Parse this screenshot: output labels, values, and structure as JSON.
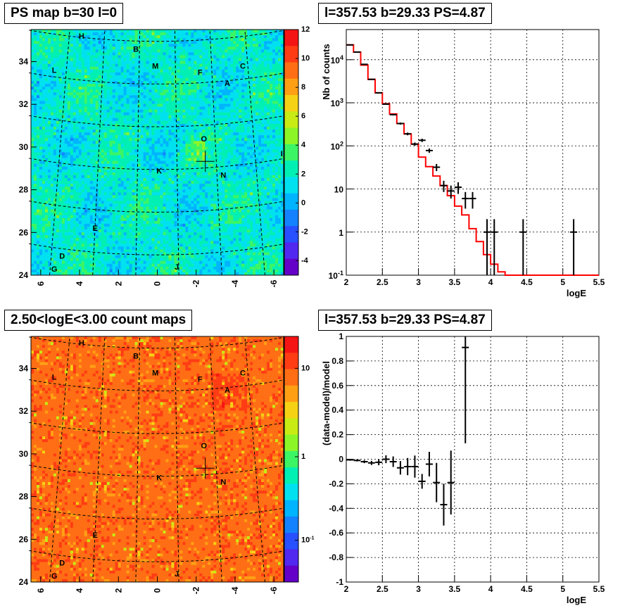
{
  "titles": {
    "map_top": "PS map b=30 l=0",
    "spec_top": "l=357.53 b=29.33 PS=4.87",
    "map_bottom": "2.50<logE<3.00 count maps",
    "resid_bottom": "l=357.53 b=29.33 PS=4.87"
  },
  "colors": {
    "model_line": "#ff0000",
    "data_points": "#000000",
    "grid": "#000000"
  },
  "chart_data": [
    {
      "type": "heatmap",
      "title": "PS map b=30 l=0",
      "x_ticks": [
        "6",
        "4",
        "2",
        "0",
        "-2",
        "-4",
        "-6"
      ],
      "y_ticks": [
        "24",
        "26",
        "28",
        "30",
        "32",
        "34"
      ],
      "xlim": [
        6.5,
        -6.5
      ],
      "ylim": [
        24,
        35.5
      ],
      "colorbar": {
        "min": -5,
        "max": 12,
        "ticks": [
          "-4",
          "-2",
          "0",
          "2",
          "4",
          "6",
          "8",
          "10",
          "12"
        ]
      },
      "source_labels": [
        {
          "text": "H",
          "x": 3.9,
          "y": 35.2
        },
        {
          "text": "B",
          "x": 1.1,
          "y": 34.6
        },
        {
          "text": "M",
          "x": 0.1,
          "y": 33.8
        },
        {
          "text": "F",
          "x": -2.2,
          "y": 33.5
        },
        {
          "text": "C",
          "x": -4.4,
          "y": 33.8
        },
        {
          "text": "L",
          "x": 5.3,
          "y": 33.6
        },
        {
          "text": "A",
          "x": -3.6,
          "y": 33.0
        },
        {
          "text": "O",
          "x": -2.4,
          "y": 30.4
        },
        {
          "text": "I",
          "x": -6.4,
          "y": 29.7
        },
        {
          "text": "K",
          "x": -0.1,
          "y": 28.9
        },
        {
          "text": "N",
          "x": -3.4,
          "y": 28.7
        },
        {
          "text": "E",
          "x": 3.2,
          "y": 26.2
        },
        {
          "text": "D",
          "x": 4.9,
          "y": 24.9
        },
        {
          "text": "G",
          "x": 5.3,
          "y": 24.3
        },
        {
          "text": "J",
          "x": -1.0,
          "y": 24.4
        }
      ],
      "marker": {
        "x": -2.47,
        "y": 29.33
      }
    },
    {
      "type": "line",
      "title": "l=357.53 b=29.33 PS=4.87",
      "xlabel": "logE",
      "ylabel": "Nb of counts",
      "xlim": [
        2,
        5.5
      ],
      "ylim": [
        0.1,
        50000
      ],
      "yscale": "log",
      "x_ticks": [
        "2",
        "2.5",
        "3",
        "3.5",
        "4",
        "4.5",
        "5",
        "5.5"
      ],
      "y_ticks": [
        "10^-1",
        "1",
        "10",
        "10^2",
        "10^3",
        "10^4"
      ],
      "grid": true,
      "series": [
        {
          "kind": "model_histogram",
          "bin_edges": [
            2.0,
            2.1,
            2.2,
            2.3,
            2.4,
            2.5,
            2.6,
            2.7,
            2.8,
            2.9,
            3.0,
            3.1,
            3.2,
            3.3,
            3.4,
            3.5,
            3.6,
            3.7,
            3.8,
            3.9,
            4.0,
            4.1,
            4.2,
            4.3,
            4.4,
            4.5,
            4.6,
            4.7,
            4.8,
            4.9,
            5.0,
            5.1,
            5.2,
            5.3,
            5.4,
            5.5
          ],
          "values": [
            22000,
            15000,
            7500,
            3500,
            1700,
            950,
            550,
            330,
            190,
            110,
            55,
            33,
            20,
            12,
            7,
            4,
            2.5,
            1.2,
            0.6,
            0.3,
            0.18,
            0.12,
            0.1,
            0.1,
            0.1,
            0.1,
            0.1,
            0.1,
            0.1,
            0.1,
            0.1,
            0.1,
            0.1,
            0.1,
            0.1
          ]
        },
        {
          "kind": "data_points",
          "x": [
            2.05,
            2.15,
            2.25,
            2.35,
            2.45,
            2.55,
            2.65,
            2.75,
            2.85,
            2.95,
            3.05,
            3.15,
            3.25,
            3.35,
            3.45,
            3.55,
            3.65,
            3.75,
            3.95,
            4.05,
            4.45,
            5.15
          ],
          "y": [
            22000,
            15000,
            7800,
            3500,
            1700,
            930,
            530,
            330,
            190,
            110,
            135,
            78,
            32,
            12,
            9,
            11,
            6,
            6,
            1,
            1,
            1,
            1
          ],
          "yerr": [
            148,
            122,
            88,
            59,
            41,
            30,
            23,
            18,
            14,
            10,
            12,
            9,
            6,
            3.5,
            3,
            3.3,
            2.5,
            2.5,
            1,
            1,
            1,
            1
          ]
        }
      ]
    },
    {
      "type": "heatmap",
      "title": "2.50<logE<3.00 count maps",
      "x_ticks": [
        "6",
        "4",
        "2",
        "0",
        "-2",
        "-4",
        "-6"
      ],
      "y_ticks": [
        "24",
        "26",
        "28",
        "30",
        "32",
        "34"
      ],
      "xlim": [
        6.5,
        -6.5
      ],
      "ylim": [
        24,
        35.5
      ],
      "colorbar": {
        "scale": "log",
        "ticks": [
          "10",
          "1",
          "10^-1"
        ]
      },
      "source_labels": [
        {
          "text": "H",
          "x": 3.9,
          "y": 35.2
        },
        {
          "text": "B",
          "x": 1.1,
          "y": 34.6
        },
        {
          "text": "M",
          "x": 0.1,
          "y": 33.8
        },
        {
          "text": "F",
          "x": -2.2,
          "y": 33.5
        },
        {
          "text": "C",
          "x": -4.4,
          "y": 33.8
        },
        {
          "text": "L",
          "x": 5.3,
          "y": 33.6
        },
        {
          "text": "A",
          "x": -3.6,
          "y": 33.0
        },
        {
          "text": "O",
          "x": -2.4,
          "y": 30.4
        },
        {
          "text": "I",
          "x": -6.4,
          "y": 29.7
        },
        {
          "text": "K",
          "x": -0.1,
          "y": 28.9
        },
        {
          "text": "N",
          "x": -3.4,
          "y": 28.7
        },
        {
          "text": "E",
          "x": 3.2,
          "y": 26.2
        },
        {
          "text": "D",
          "x": 4.9,
          "y": 24.9
        },
        {
          "text": "G",
          "x": 5.3,
          "y": 24.3
        },
        {
          "text": "J",
          "x": -1.0,
          "y": 24.4
        }
      ],
      "marker": {
        "x": -2.47,
        "y": 29.33
      }
    },
    {
      "type": "scatter",
      "title": "l=357.53 b=29.33 PS=4.87",
      "xlabel": "logE",
      "ylabel": "(data-model)/model",
      "xlim": [
        2,
        5.5
      ],
      "ylim": [
        -1,
        1
      ],
      "x_ticks": [
        "2",
        "2.5",
        "3",
        "3.5",
        "4",
        "4.5",
        "5",
        "5.5"
      ],
      "y_ticks": [
        "-1",
        "-0.8",
        "-0.6",
        "-0.4",
        "-0.2",
        "0",
        "0.2",
        "0.4",
        "0.6",
        "0.8",
        "1"
      ],
      "grid": true,
      "x": [
        2.05,
        2.15,
        2.25,
        2.35,
        2.45,
        2.55,
        2.65,
        2.75,
        2.85,
        2.95,
        3.05,
        3.15,
        3.25,
        3.35,
        3.45,
        3.65
      ],
      "y": [
        -0.005,
        -0.01,
        -0.02,
        -0.03,
        -0.025,
        0.0,
        -0.02,
        -0.07,
        -0.06,
        -0.06,
        -0.18,
        -0.04,
        -0.19,
        -0.37,
        -0.19,
        0.91
      ],
      "yerr": [
        0.007,
        0.008,
        0.012,
        0.017,
        0.024,
        0.032,
        0.043,
        0.055,
        0.07,
        0.09,
        0.06,
        0.1,
        0.16,
        0.17,
        0.26,
        0.78
      ]
    }
  ]
}
